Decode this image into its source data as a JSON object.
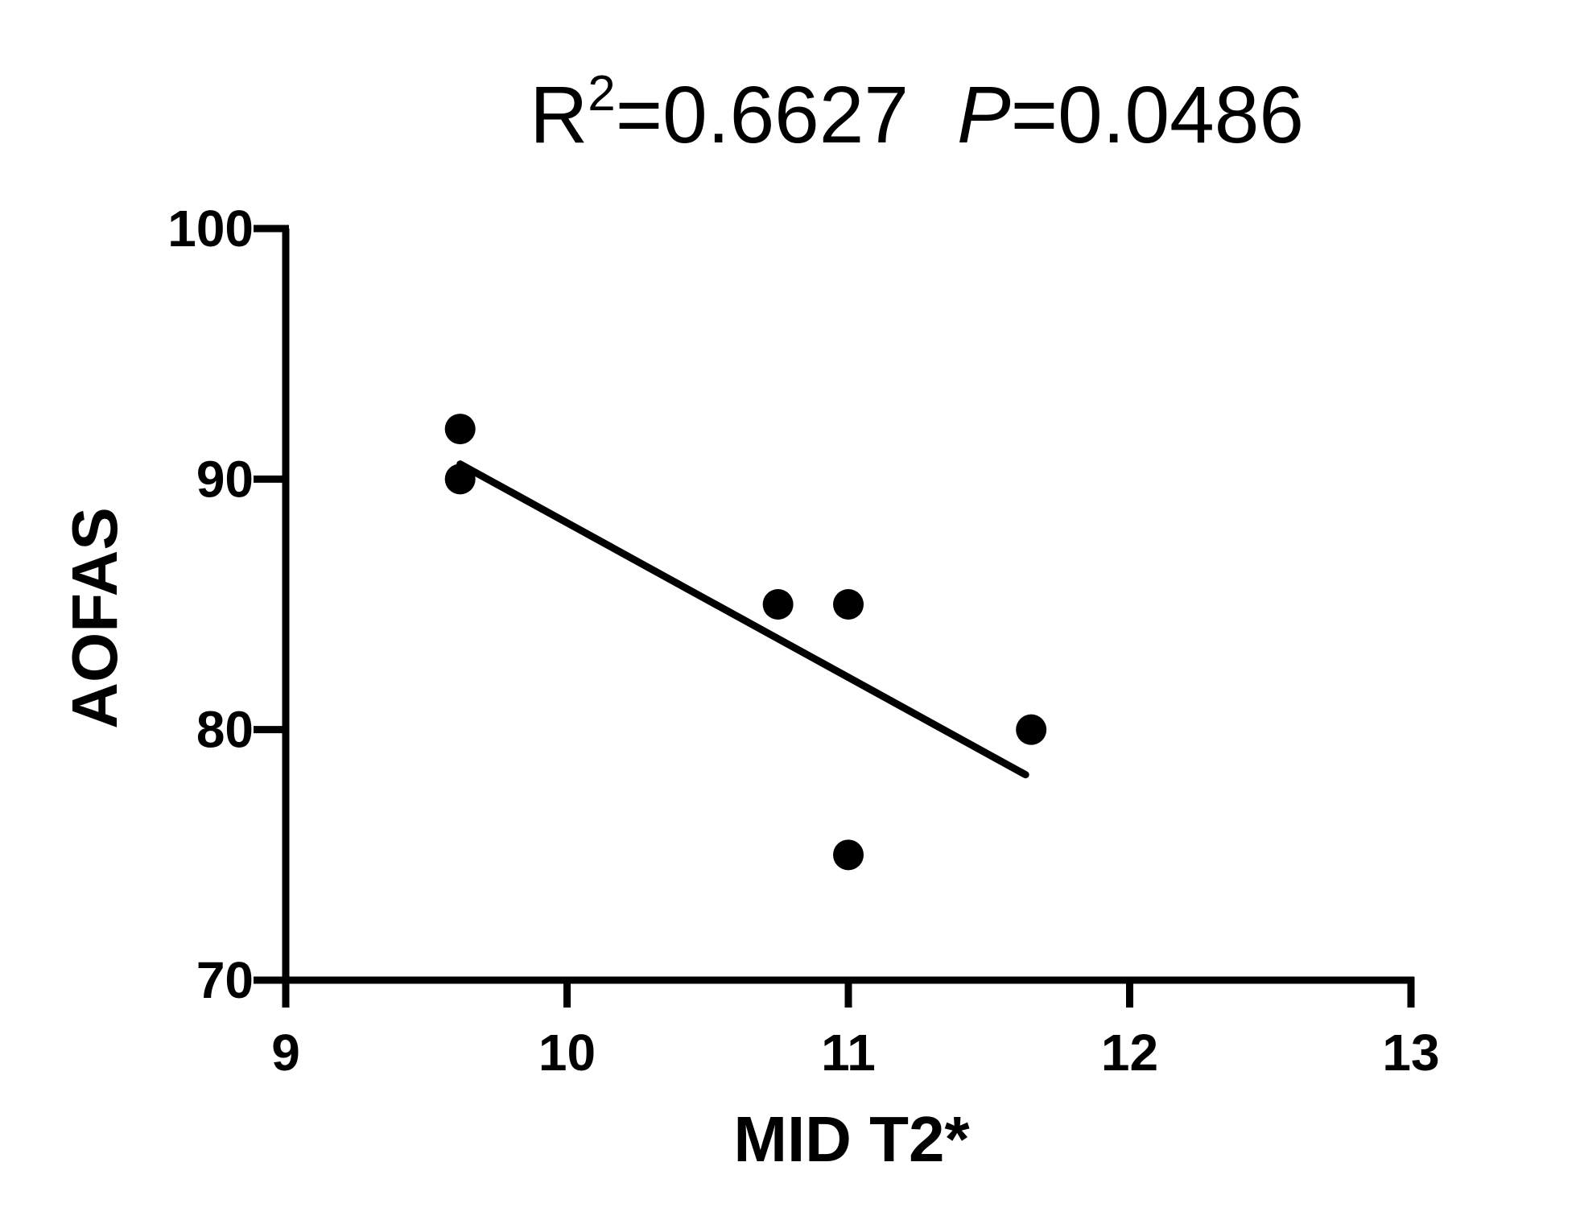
{
  "chart_data": {
    "type": "scatter",
    "title": {
      "r2_label": "R",
      "r2_exponent": "2",
      "r2_value": "=0.6627",
      "p_label": "P",
      "p_value": "=0.0486"
    },
    "xlabel": "MID T2*",
    "ylabel": "AOFAS",
    "xlim": [
      9,
      13
    ],
    "ylim": [
      70,
      100
    ],
    "xticks": [
      9,
      10,
      11,
      12,
      13
    ],
    "yticks": [
      70,
      80,
      90,
      100
    ],
    "xtick_labels": [
      "9",
      "10",
      "11",
      "12",
      "13"
    ],
    "ytick_labels": [
      "70",
      "80",
      "90",
      "100"
    ],
    "points": [
      {
        "x": 9.62,
        "y": 92
      },
      {
        "x": 9.62,
        "y": 90
      },
      {
        "x": 10.75,
        "y": 85
      },
      {
        "x": 11.0,
        "y": 85
      },
      {
        "x": 11.65,
        "y": 80
      },
      {
        "x": 11.0,
        "y": 75
      }
    ],
    "fit_line": {
      "x": [
        9.62,
        11.63
      ],
      "y": [
        90.6,
        78.2
      ]
    },
    "grid": false,
    "legend": "none",
    "colors": {
      "points": "#000000",
      "line": "#000000",
      "axes": "#000000"
    }
  }
}
